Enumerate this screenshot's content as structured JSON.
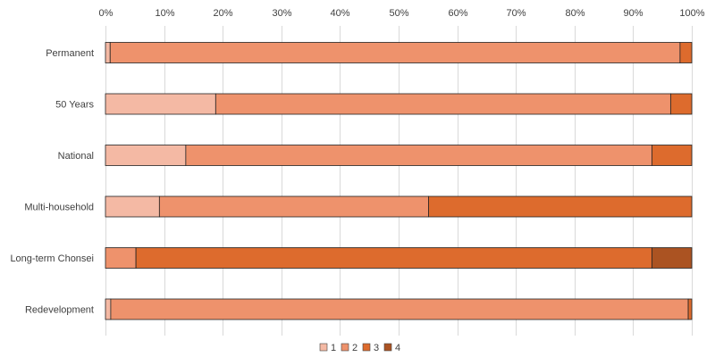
{
  "chart_data": {
    "type": "bar",
    "orientation": "horizontal",
    "stacked": "percent",
    "title": "",
    "xlabel": "",
    "ylabel": "",
    "xlim": [
      0,
      100
    ],
    "x_ticks": [
      "0%",
      "10%",
      "20%",
      "30%",
      "40%",
      "50%",
      "60%",
      "70%",
      "80%",
      "90%",
      "100%"
    ],
    "x_axis_position": "top",
    "grid": true,
    "legend_position": "bottom",
    "categories": [
      "Permanent",
      "50 Years",
      "National",
      "Multi-household",
      "Long-term Chonsei",
      "Redevelopment"
    ],
    "series": [
      {
        "name": "1",
        "color": "#f4b9a4",
        "values": [
          0.8,
          18.8,
          13.7,
          9.2,
          0,
          0.9
        ]
      },
      {
        "name": "2",
        "color": "#ee926c",
        "values": [
          97.2,
          77.6,
          79.5,
          45.9,
          5.2,
          98.5
        ]
      },
      {
        "name": "3",
        "color": "#dd6b2d",
        "values": [
          2.0,
          3.6,
          6.8,
          44.9,
          88.0,
          0.6
        ]
      },
      {
        "name": "4",
        "color": "#ab5322",
        "values": [
          0,
          0,
          0,
          0,
          6.8,
          0
        ]
      }
    ]
  }
}
